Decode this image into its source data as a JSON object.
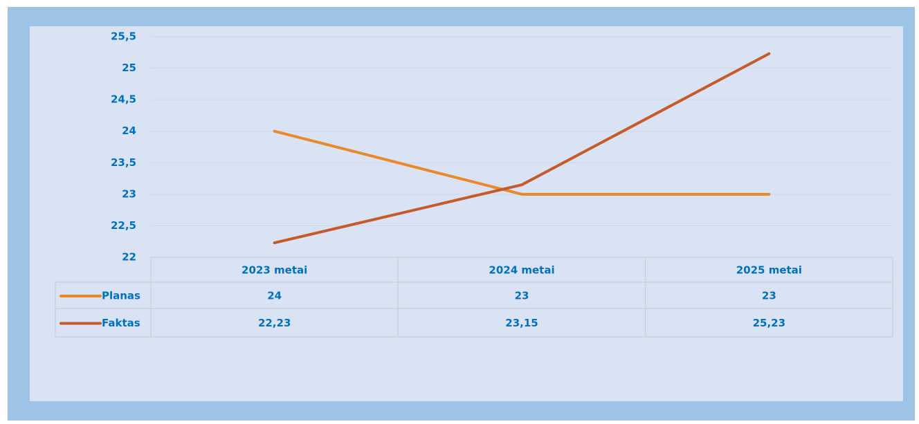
{
  "chart_data": {
    "type": "line",
    "categories": [
      "2023 metai",
      "2024 metai",
      "2025 metai"
    ],
    "series": [
      {
        "name": "Planas",
        "color": "#e8892a",
        "values": [
          24,
          23,
          23
        ]
      },
      {
        "name": "Faktas",
        "color": "#c55a2a",
        "values": [
          22.23,
          23.15,
          25.23
        ],
        "value_labels": [
          "22,23",
          "23,15",
          "25,23"
        ]
      }
    ],
    "ylim": [
      22,
      25.5
    ],
    "yticks": [
      22,
      {
        "value": 22.5,
        "label": "22,5"
      },
      23,
      {
        "value": 23.5,
        "label": "23,5"
      },
      24,
      {
        "value": 24.5,
        "label": "24,5"
      },
      25,
      {
        "value": 25.5,
        "label": "25,5"
      }
    ],
    "grid": true
  }
}
